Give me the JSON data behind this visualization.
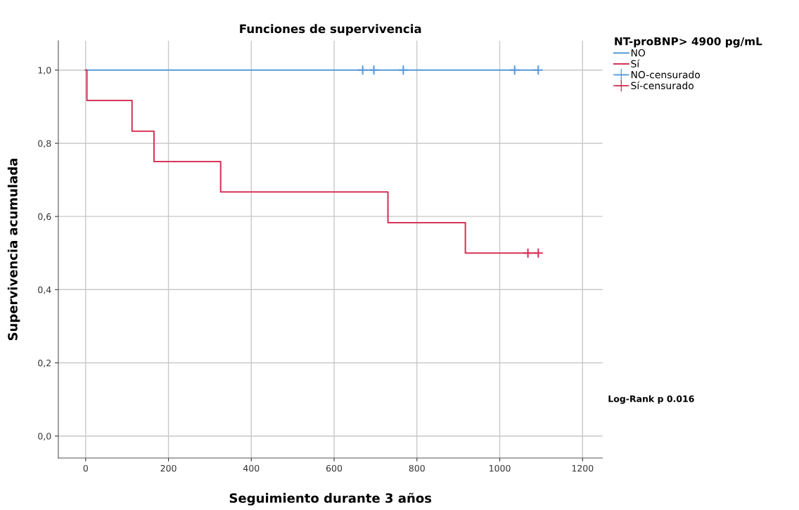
{
  "chart_data": {
    "type": "step",
    "title": "Funciones de supervivencia",
    "xlabel": "Seguimiento durante 3 años",
    "ylabel": "Supervivencia acumulada",
    "legend_title": "NT-proBNP> 4900 pg/mL",
    "series": [
      {
        "name": "NO",
        "color": "#5b9bdc",
        "x": [
          0,
          1093
        ],
        "values": [
          1.0,
          1.0
        ]
      },
      {
        "name": "Sí",
        "color": "#d6355a",
        "x": [
          0,
          3,
          112,
          165,
          326,
          730,
          917,
          1093
        ],
        "values": [
          1.0,
          0.917,
          0.833,
          0.75,
          0.667,
          0.583,
          0.5,
          0.5
        ]
      },
      {
        "name": "NO-censurado",
        "type": "scatter",
        "marker": "cross",
        "color": "#5b9bdc",
        "x": [
          669,
          696,
          767,
          1036,
          1093
        ],
        "values": [
          1.0,
          1.0,
          1.0,
          1.0,
          1.0
        ]
      },
      {
        "name": "Sí-censurado",
        "type": "scatter",
        "marker": "cross",
        "color": "#d6355a",
        "x": [
          1068,
          1093
        ],
        "values": [
          0.5,
          0.5
        ]
      }
    ],
    "xlim": [
      -66,
      1248
    ],
    "ylim": [
      -0.06,
      1.08
    ],
    "xticks": [
      0,
      200,
      400,
      600,
      800,
      1000,
      1200
    ],
    "yticks": [
      {
        "value": 0.0,
        "label": "0,0"
      },
      {
        "value": 0.2,
        "label": "0,2"
      },
      {
        "value": 0.4,
        "label": "0,4"
      },
      {
        "value": 0.6,
        "label": "0,6"
      },
      {
        "value": 0.8,
        "label": "0,8"
      },
      {
        "value": 1.0,
        "label": "1,0"
      }
    ],
    "grid": true,
    "legend": "top right",
    "annotations": [
      "Log-Rank p 0.016"
    ]
  }
}
